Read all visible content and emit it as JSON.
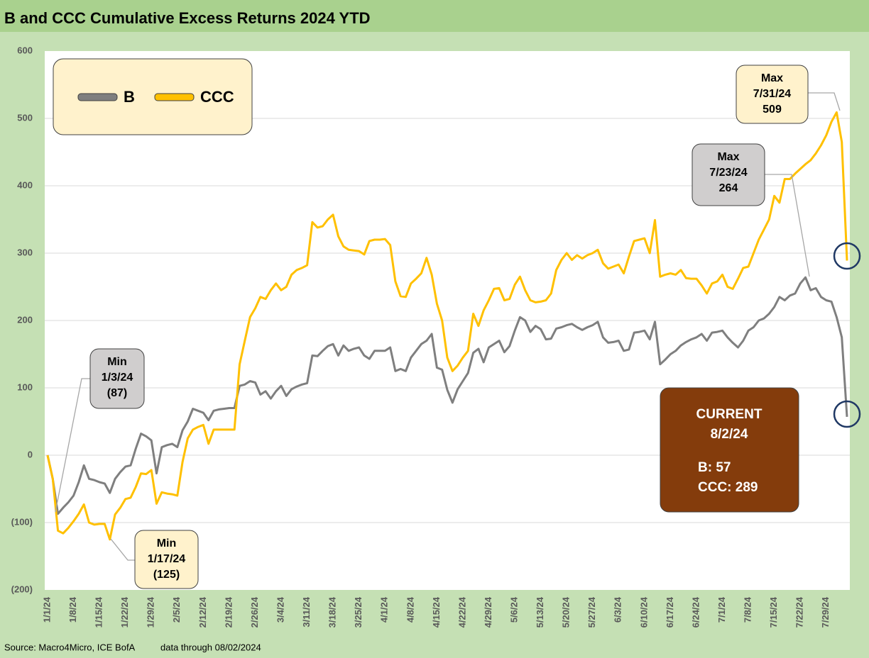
{
  "chart_data": {
    "type": "line",
    "title": "B and CCC Cumulative Excess Returns 2024 YTD",
    "source": "Source: Macro4Micro, ICE BofA",
    "note": "data through 08/02/2024",
    "categories": [
      "1/1/24",
      null,
      null,
      null,
      null,
      "1/8/24",
      null,
      null,
      null,
      null,
      "1/15/24",
      null,
      null,
      null,
      null,
      "1/22/24",
      null,
      null,
      null,
      null,
      "1/29/24",
      null,
      null,
      null,
      null,
      "2/5/24",
      null,
      null,
      null,
      null,
      "2/12/24",
      null,
      null,
      null,
      null,
      "2/19/24",
      null,
      null,
      null,
      null,
      "2/26/24",
      null,
      null,
      null,
      null,
      "3/4/24",
      null,
      null,
      null,
      null,
      "3/11/24",
      null,
      null,
      null,
      null,
      "3/18/24",
      null,
      null,
      null,
      null,
      "3/25/24",
      null,
      null,
      null,
      null,
      "4/1/24",
      null,
      null,
      null,
      null,
      "4/8/24",
      null,
      null,
      null,
      null,
      "4/15/24",
      null,
      null,
      null,
      null,
      "4/22/24",
      null,
      null,
      null,
      null,
      "4/29/24",
      null,
      null,
      null,
      null,
      "5/6/24",
      null,
      null,
      null,
      null,
      "5/13/24",
      null,
      null,
      null,
      null,
      "5/20/24",
      null,
      null,
      null,
      null,
      "5/27/24",
      null,
      null,
      null,
      null,
      "6/3/24",
      null,
      null,
      null,
      null,
      "6/10/24",
      null,
      null,
      null,
      null,
      "6/17/24",
      null,
      null,
      null,
      null,
      "6/24/24",
      null,
      null,
      null,
      null,
      "7/1/24",
      null,
      null,
      null,
      null,
      "7/8/24",
      null,
      null,
      null,
      null,
      "7/15/24",
      null,
      null,
      null,
      null,
      "7/22/24",
      null,
      null,
      null,
      null,
      "7/29/24",
      null,
      null,
      null,
      null
    ],
    "series": [
      {
        "name": "B",
        "color": "#7f7f7f",
        "values": [
          0,
          -35,
          -87,
          -78,
          -70,
          -60,
          -40,
          -15,
          -35,
          -37,
          -40,
          -42,
          -56,
          -35,
          -25,
          -17,
          -15,
          10,
          32,
          28,
          22,
          -27,
          12,
          15,
          17,
          12,
          37,
          50,
          69,
          66,
          63,
          52,
          66,
          68,
          69,
          70,
          70,
          103,
          105,
          110,
          108,
          90,
          95,
          84,
          95,
          103,
          88,
          98,
          102,
          105,
          107,
          148,
          147,
          155,
          162,
          165,
          148,
          163,
          155,
          158,
          160,
          148,
          143,
          155,
          155,
          155,
          160,
          125,
          128,
          125,
          145,
          155,
          165,
          170,
          180,
          130,
          127,
          97,
          78,
          98,
          110,
          122,
          152,
          158,
          138,
          160,
          165,
          170,
          153,
          162,
          185,
          205,
          200,
          183,
          192,
          187,
          172,
          173,
          188,
          190,
          193,
          195,
          190,
          186,
          190,
          193,
          198,
          175,
          167,
          168,
          170,
          155,
          157,
          182,
          183,
          185,
          172,
          198,
          135,
          142,
          150,
          155,
          163,
          168,
          172,
          175,
          180,
          170,
          182,
          183,
          185,
          175,
          167,
          160,
          170,
          185,
          190,
          200,
          203,
          210,
          220,
          235,
          230,
          237,
          240,
          255,
          264,
          245,
          248,
          235,
          230,
          228,
          205,
          175,
          57
        ]
      },
      {
        "name": "CCC",
        "color": "#ffc000",
        "values": [
          0,
          -35,
          -112,
          -116,
          -108,
          -98,
          -87,
          -73,
          -100,
          -103,
          -102,
          -102,
          -125,
          -88,
          -78,
          -65,
          -63,
          -47,
          -27,
          -28,
          -22,
          -72,
          -55,
          -57,
          -58,
          -60,
          -10,
          25,
          38,
          42,
          45,
          17,
          38,
          38,
          38,
          38,
          38,
          135,
          170,
          205,
          218,
          235,
          232,
          245,
          255,
          245,
          250,
          268,
          275,
          278,
          282,
          346,
          338,
          340,
          350,
          357,
          325,
          310,
          305,
          304,
          303,
          298,
          318,
          320,
          320,
          321,
          312,
          258,
          236,
          235,
          255,
          262,
          270,
          293,
          268,
          225,
          200,
          145,
          125,
          133,
          145,
          155,
          210,
          192,
          215,
          230,
          247,
          248,
          230,
          232,
          253,
          265,
          245,
          230,
          227,
          228,
          230,
          240,
          275,
          290,
          300,
          290,
          297,
          292,
          297,
          300,
          305,
          285,
          277,
          280,
          283,
          270,
          295,
          318,
          320,
          322,
          300,
          349,
          265,
          268,
          270,
          268,
          275,
          263,
          262,
          262,
          252,
          240,
          255,
          258,
          268,
          250,
          247,
          262,
          278,
          280,
          300,
          320,
          335,
          350,
          385,
          375,
          410,
          410,
          418,
          425,
          432,
          438,
          448,
          460,
          475,
          495,
          509,
          465,
          289
        ]
      }
    ],
    "ylim": [
      -200,
      600
    ],
    "yticks": [
      600,
      500,
      400,
      300,
      200,
      100,
      0,
      {
        "value": -100,
        "label": "(100)"
      },
      {
        "value": -200,
        "label": "(200)"
      }
    ],
    "grid": true,
    "legend": "upper left",
    "annotations": [
      {
        "lines": [
          "Min",
          "1/3/24",
          "(87)"
        ]
      },
      {
        "lines": [
          "Min",
          "1/17/24",
          "(125)"
        ]
      },
      {
        "lines": [
          "Max",
          "7/23/24",
          "264"
        ]
      },
      {
        "lines": [
          "Max",
          "7/31/24",
          "509"
        ]
      },
      {
        "lines": [
          "CURRENT",
          "8/2/24",
          "B: 57",
          "CCC: 289"
        ]
      }
    ]
  }
}
